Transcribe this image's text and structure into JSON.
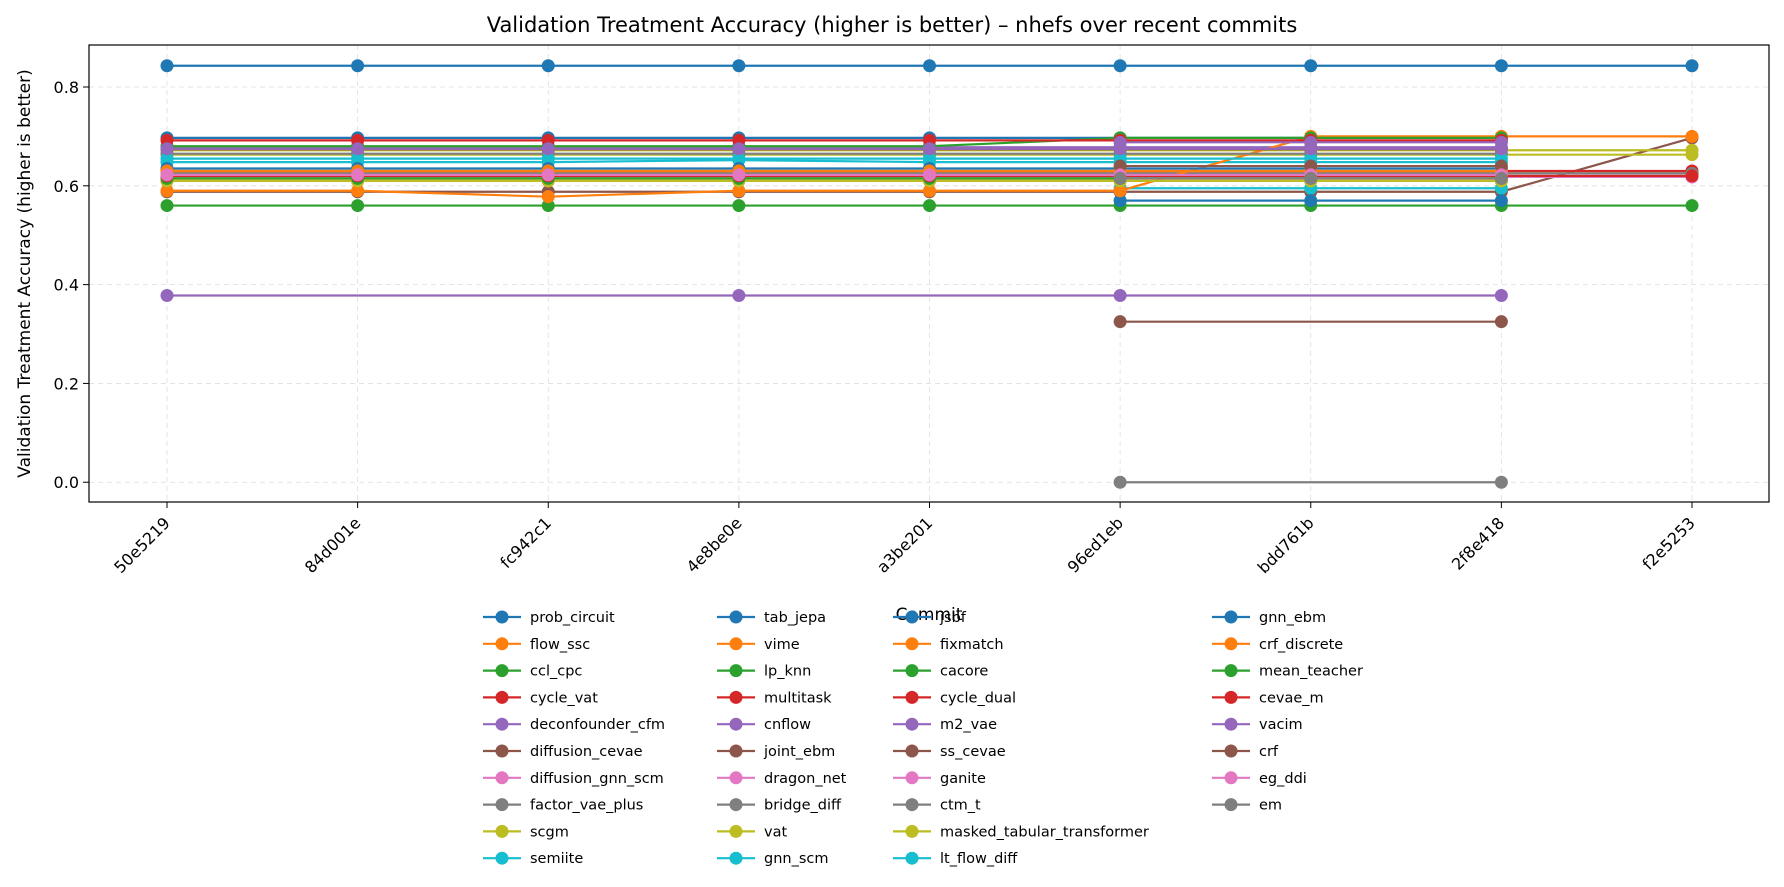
{
  "chart_data": {
    "type": "line",
    "title": "Validation Treatment Accuracy (higher is better) – nhefs over recent commits",
    "xlabel": "Commit",
    "ylabel": "Validation Treatment Accuracy (higher is better)",
    "categories": [
      "50e5219",
      "84d001e",
      "fc942c1",
      "4e8be0e",
      "a3be201",
      "96ed1eb",
      "bdd761b",
      "2f8e418",
      "f2e5253"
    ],
    "yticks": [
      0.0,
      0.2,
      0.4,
      0.6,
      0.8
    ],
    "ylim": [
      -0.04,
      0.885
    ],
    "grid": true,
    "legend_position": "bottom-center",
    "legend_columns": 4,
    "series": [
      {
        "name": "prob_circuit",
        "color": "#1f77b4",
        "values": [
          0.843,
          0.843,
          0.843,
          0.843,
          0.843,
          0.843,
          0.843,
          0.843,
          0.843
        ]
      },
      {
        "name": "flow_ssc",
        "color": "#ff7f0e",
        "values": [
          0.625,
          0.625,
          0.625,
          0.625,
          0.625,
          0.625,
          0.625,
          0.625,
          0.625
        ]
      },
      {
        "name": "ccl_cpc",
        "color": "#2ca02c",
        "values": [
          0.56,
          0.56,
          0.56,
          0.56,
          0.56,
          0.56,
          0.56,
          0.56,
          0.56
        ]
      },
      {
        "name": "cycle_vat",
        "color": "#d62728",
        "values": [
          0.625,
          0.625,
          0.625,
          0.625,
          0.625,
          0.625,
          0.625,
          0.625,
          0.625
        ]
      },
      {
        "name": "deconfounder_cfm",
        "color": "#9467bd",
        "values": [
          0.678,
          0.678,
          0.678,
          0.678,
          0.678,
          0.678,
          0.678,
          0.678,
          null
        ]
      },
      {
        "name": "diffusion_cevae",
        "color": "#8c564b",
        "values": [
          0.588,
          0.588,
          0.588,
          0.588,
          0.588,
          0.588,
          0.588,
          0.588,
          0.697
        ]
      },
      {
        "name": "diffusion_gnn_scm",
        "color": "#e377c2",
        "values": [
          0.62,
          0.62,
          0.62,
          0.62,
          0.62,
          0.62,
          0.62,
          0.62,
          0.62
        ]
      },
      {
        "name": "factor_vae_plus",
        "color": "#7f7f7f",
        "values": [
          null,
          null,
          null,
          null,
          null,
          0.0,
          null,
          0.0,
          null
        ]
      },
      {
        "name": "scgm",
        "color": "#bcbd22",
        "values": [
          0.663,
          0.663,
          0.663,
          0.663,
          0.663,
          0.663,
          0.663,
          0.663,
          0.663
        ]
      },
      {
        "name": "semiite",
        "color": "#17becf",
        "values": [
          0.648,
          0.648,
          0.648,
          0.652,
          0.648,
          0.648,
          0.648,
          0.648,
          null
        ]
      },
      {
        "name": "tab_jepa",
        "color": "#1f77b4",
        "values": [
          0.697,
          0.697,
          0.697,
          0.697,
          0.697,
          0.697,
          0.697,
          0.697,
          null
        ]
      },
      {
        "name": "vime",
        "color": "#ff7f0e",
        "values": [
          0.61,
          0.61,
          0.61,
          0.61,
          0.61,
          0.61,
          0.61,
          0.61,
          null
        ]
      },
      {
        "name": "lp_knn",
        "color": "#2ca02c",
        "values": [
          0.625,
          0.625,
          0.625,
          0.625,
          0.625,
          0.625,
          0.625,
          0.625,
          0.625
        ]
      },
      {
        "name": "multitask",
        "color": "#d62728",
        "values": [
          0.63,
          0.63,
          0.63,
          0.63,
          0.63,
          0.63,
          0.63,
          0.63,
          0.63
        ]
      },
      {
        "name": "cnflow",
        "color": "#9467bd",
        "values": [
          0.378,
          null,
          null,
          0.378,
          null,
          0.378,
          null,
          0.378,
          null
        ]
      },
      {
        "name": "joint_ebm",
        "color": "#8c564b",
        "values": [
          null,
          null,
          null,
          null,
          null,
          0.325,
          null,
          0.325,
          null
        ]
      },
      {
        "name": "dragon_net",
        "color": "#e377c2",
        "values": [
          0.618,
          0.618,
          0.618,
          0.618,
          0.618,
          0.618,
          0.618,
          0.618,
          0.618
        ]
      },
      {
        "name": "bridge_diff",
        "color": "#7f7f7f",
        "values": [
          0.625,
          0.625,
          0.625,
          0.625,
          0.625,
          0.625,
          0.625,
          0.625,
          0.625
        ]
      },
      {
        "name": "vat",
        "color": "#bcbd22",
        "values": [
          0.672,
          0.672,
          0.672,
          0.672,
          0.672,
          0.672,
          0.672,
          0.672,
          0.672
        ]
      },
      {
        "name": "gnn_scm",
        "color": "#17becf",
        "values": [
          null,
          null,
          null,
          null,
          null,
          0.595,
          0.595,
          0.595,
          null
        ]
      },
      {
        "name": "jsbf",
        "color": "#1f77b4",
        "values": [
          null,
          null,
          null,
          null,
          null,
          0.57,
          0.57,
          0.57,
          null
        ]
      },
      {
        "name": "fixmatch",
        "color": "#ff7f0e",
        "values": [
          0.59,
          0.59,
          0.578,
          0.59,
          0.59,
          0.59,
          0.7,
          0.7,
          0.7
        ]
      },
      {
        "name": "cacore",
        "color": "#2ca02c",
        "values": [
          0.68,
          0.68,
          0.68,
          0.68,
          0.68,
          0.697,
          0.697,
          0.697,
          null
        ]
      },
      {
        "name": "cycle_dual",
        "color": "#d62728",
        "values": [
          0.692,
          0.692,
          0.692,
          0.692,
          0.692,
          0.692,
          0.692,
          0.692,
          null
        ]
      },
      {
        "name": "m2_vae",
        "color": "#9467bd",
        "values": [
          null,
          null,
          null,
          null,
          null,
          0.688,
          0.688,
          0.688,
          null
        ]
      },
      {
        "name": "ss_cevae",
        "color": "#8c564b",
        "values": [
          0.674,
          0.674,
          0.674,
          0.674,
          0.674,
          0.674,
          0.674,
          0.674,
          null
        ]
      },
      {
        "name": "ganite",
        "color": "#e377c2",
        "values": [
          0.618,
          0.618,
          0.618,
          0.618,
          0.618,
          0.618,
          0.618,
          0.618,
          0.618
        ]
      },
      {
        "name": "ctm_t",
        "color": "#7f7f7f",
        "values": [
          0.665,
          0.665,
          0.665,
          0.665,
          0.665,
          0.665,
          0.665,
          0.665,
          null
        ]
      },
      {
        "name": "masked_tabular_transformer",
        "color": "#bcbd22",
        "values": [
          0.61,
          0.61,
          0.61,
          0.61,
          0.61,
          0.61,
          0.61,
          0.61,
          null
        ]
      },
      {
        "name": "lt_flow_diff",
        "color": "#17becf",
        "values": [
          0.655,
          0.655,
          0.655,
          0.655,
          0.655,
          0.655,
          0.655,
          0.655,
          null
        ]
      },
      {
        "name": "gnn_ebm",
        "color": "#1f77b4",
        "values": [
          0.635,
          0.635,
          0.635,
          0.635,
          0.635,
          0.635,
          0.635,
          0.635,
          null
        ]
      },
      {
        "name": "crf_discrete",
        "color": "#ff7f0e",
        "values": [
          0.63,
          0.63,
          0.63,
          0.63,
          0.63,
          0.63,
          0.63,
          0.63,
          null
        ]
      },
      {
        "name": "mean_teacher",
        "color": "#2ca02c",
        "values": [
          0.615,
          0.615,
          0.615,
          0.615,
          0.615,
          0.615,
          0.615,
          0.615,
          null
        ]
      },
      {
        "name": "cevae_m",
        "color": "#d62728",
        "values": [
          0.62,
          0.62,
          0.62,
          0.62,
          0.62,
          0.62,
          0.62,
          0.62,
          0.62
        ]
      },
      {
        "name": "vacim",
        "color": "#9467bd",
        "values": [
          0.675,
          0.675,
          0.675,
          0.675,
          0.675,
          0.675,
          0.675,
          0.675,
          null
        ]
      },
      {
        "name": "crf",
        "color": "#8c564b",
        "values": [
          null,
          null,
          null,
          null,
          null,
          0.64,
          0.64,
          0.64,
          null
        ]
      },
      {
        "name": "eg_ddi",
        "color": "#e377c2",
        "values": [
          0.622,
          0.622,
          0.622,
          0.622,
          0.622,
          0.622,
          0.622,
          0.622,
          null
        ]
      },
      {
        "name": "em",
        "color": "#7f7f7f",
        "values": [
          null,
          null,
          null,
          null,
          null,
          0.615,
          0.615,
          0.615,
          null
        ]
      }
    ]
  }
}
